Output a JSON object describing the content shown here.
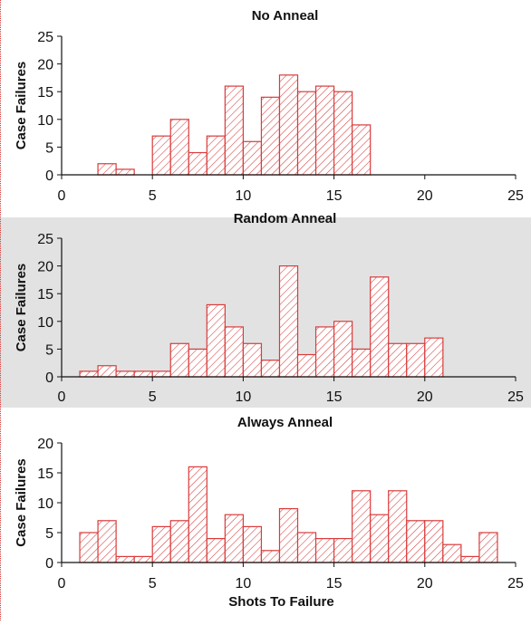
{
  "chart_data": [
    {
      "type": "bar",
      "title": "No Anneal",
      "ylabel": "Case Failures",
      "xlabel": "",
      "xlim": [
        0,
        25
      ],
      "ylim": [
        0,
        25
      ],
      "xticks": [
        0,
        5,
        10,
        15,
        20,
        25
      ],
      "yticks": [
        0,
        5,
        10,
        15,
        20,
        25
      ],
      "background": "#ffffff",
      "bar_color": "#d93b3b",
      "bins": [
        {
          "x0": 2,
          "x1": 3,
          "value": 2
        },
        {
          "x0": 3,
          "x1": 4,
          "value": 1
        },
        {
          "x0": 4,
          "x1": 5,
          "value": 0
        },
        {
          "x0": 5,
          "x1": 6,
          "value": 7
        },
        {
          "x0": 6,
          "x1": 7,
          "value": 10
        },
        {
          "x0": 7,
          "x1": 8,
          "value": 4
        },
        {
          "x0": 8,
          "x1": 9,
          "value": 7
        },
        {
          "x0": 9,
          "x1": 10,
          "value": 16
        },
        {
          "x0": 10,
          "x1": 11,
          "value": 6
        },
        {
          "x0": 11,
          "x1": 12,
          "value": 14
        },
        {
          "x0": 12,
          "x1": 13,
          "value": 18
        },
        {
          "x0": 13,
          "x1": 14,
          "value": 15
        },
        {
          "x0": 14,
          "x1": 15,
          "value": 16
        },
        {
          "x0": 15,
          "x1": 16,
          "value": 15
        },
        {
          "x0": 16,
          "x1": 17,
          "value": 9
        }
      ]
    },
    {
      "type": "bar",
      "title": "Random Anneal",
      "ylabel": "Case Failures",
      "xlabel": "",
      "xlim": [
        0,
        25
      ],
      "ylim": [
        0,
        25
      ],
      "xticks": [
        0,
        5,
        10,
        15,
        20,
        25
      ],
      "yticks": [
        0,
        5,
        10,
        15,
        20,
        25
      ],
      "background": "#e2e2e2",
      "bar_color": "#d93b3b",
      "bins": [
        {
          "x0": 1,
          "x1": 2,
          "value": 1
        },
        {
          "x0": 2,
          "x1": 3,
          "value": 2
        },
        {
          "x0": 3,
          "x1": 4,
          "value": 1
        },
        {
          "x0": 4,
          "x1": 5,
          "value": 1
        },
        {
          "x0": 5,
          "x1": 6,
          "value": 1
        },
        {
          "x0": 6,
          "x1": 7,
          "value": 6
        },
        {
          "x0": 7,
          "x1": 8,
          "value": 5
        },
        {
          "x0": 8,
          "x1": 9,
          "value": 13
        },
        {
          "x0": 9,
          "x1": 10,
          "value": 9
        },
        {
          "x0": 10,
          "x1": 11,
          "value": 6
        },
        {
          "x0": 11,
          "x1": 12,
          "value": 3
        },
        {
          "x0": 12,
          "x1": 13,
          "value": 20
        },
        {
          "x0": 13,
          "x1": 14,
          "value": 4
        },
        {
          "x0": 14,
          "x1": 15,
          "value": 9
        },
        {
          "x0": 15,
          "x1": 16,
          "value": 10
        },
        {
          "x0": 16,
          "x1": 17,
          "value": 5
        },
        {
          "x0": 17,
          "x1": 18,
          "value": 18
        },
        {
          "x0": 18,
          "x1": 19,
          "value": 6
        },
        {
          "x0": 19,
          "x1": 20,
          "value": 6
        },
        {
          "x0": 20,
          "x1": 21,
          "value": 7
        }
      ]
    },
    {
      "type": "bar",
      "title": "Always Anneal",
      "ylabel": "Case Failures",
      "xlabel": "Shots To Failure",
      "xlim": [
        0,
        25
      ],
      "ylim": [
        0,
        20
      ],
      "xticks": [
        0,
        5,
        10,
        15,
        20,
        25
      ],
      "yticks": [
        0,
        5,
        10,
        15,
        20
      ],
      "background": "#ffffff",
      "bar_color": "#d93b3b",
      "bins": [
        {
          "x0": 1,
          "x1": 2,
          "value": 5
        },
        {
          "x0": 2,
          "x1": 3,
          "value": 7
        },
        {
          "x0": 3,
          "x1": 4,
          "value": 1
        },
        {
          "x0": 4,
          "x1": 5,
          "value": 1
        },
        {
          "x0": 5,
          "x1": 6,
          "value": 6
        },
        {
          "x0": 6,
          "x1": 7,
          "value": 7
        },
        {
          "x0": 7,
          "x1": 8,
          "value": 16
        },
        {
          "x0": 8,
          "x1": 9,
          "value": 4
        },
        {
          "x0": 9,
          "x1": 10,
          "value": 8
        },
        {
          "x0": 10,
          "x1": 11,
          "value": 6
        },
        {
          "x0": 11,
          "x1": 12,
          "value": 2
        },
        {
          "x0": 12,
          "x1": 13,
          "value": 9
        },
        {
          "x0": 13,
          "x1": 14,
          "value": 5
        },
        {
          "x0": 14,
          "x1": 15,
          "value": 4
        },
        {
          "x0": 15,
          "x1": 16,
          "value": 4
        },
        {
          "x0": 16,
          "x1": 17,
          "value": 12
        },
        {
          "x0": 17,
          "x1": 18,
          "value": 8
        },
        {
          "x0": 18,
          "x1": 19,
          "value": 12
        },
        {
          "x0": 19,
          "x1": 20,
          "value": 7
        },
        {
          "x0": 20,
          "x1": 21,
          "value": 7
        },
        {
          "x0": 21,
          "x1": 22,
          "value": 3
        },
        {
          "x0": 22,
          "x1": 23,
          "value": 1
        },
        {
          "x0": 23,
          "x1": 24,
          "value": 5
        }
      ]
    }
  ]
}
